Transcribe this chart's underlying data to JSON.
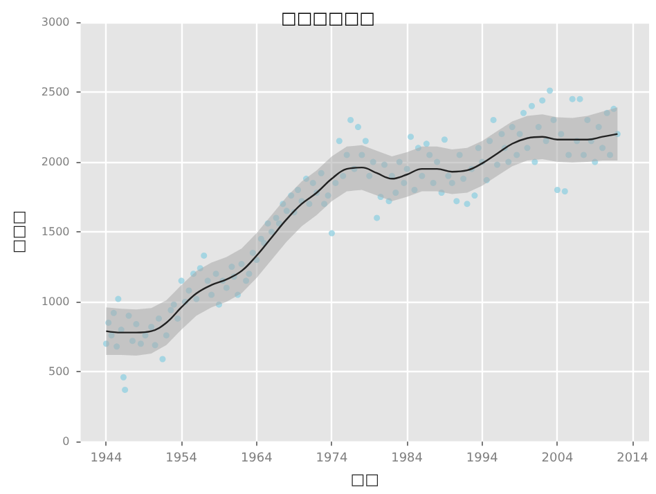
{
  "chart_data": {
    "type": "scatter",
    "title": "□□□□□□",
    "xlabel": "□□",
    "ylabel": "□□□",
    "xlim": [
      1940.6,
      2016.2
    ],
    "xticks": [
      1944,
      1954,
      1964,
      1974,
      1984,
      1994,
      2004,
      2014
    ],
    "ylim": [
      0,
      3000
    ],
    "yticks": [
      0,
      500,
      1000,
      1500,
      2000,
      2500,
      3000
    ],
    "grid": true,
    "marker": "circle",
    "series": [
      {
        "color": "#8fcfe0",
        "x": [
          1944,
          1944.3,
          1944.7,
          1945,
          1945.4,
          1945.6,
          1946,
          1946.3,
          1946.5,
          1947,
          1947.5,
          1948,
          1948.6,
          1949.2,
          1950,
          1950.5,
          1951,
          1951.5,
          1952,
          1952.6,
          1953,
          1953.5,
          1954,
          1954.5,
          1955,
          1955.6,
          1956,
          1956.5,
          1957,
          1957.5,
          1958,
          1958.6,
          1959,
          1959.5,
          1960,
          1960.7,
          1961,
          1961.5,
          1962,
          1962.6,
          1963,
          1963.5,
          1964,
          1964.6,
          1965,
          1965.5,
          1966,
          1966.6,
          1967,
          1967.5,
          1968,
          1968.6,
          1969,
          1969.5,
          1970,
          1970.6,
          1971,
          1971.5,
          1972,
          1972.6,
          1973,
          1973.5,
          1974,
          1974.5,
          1975,
          1975.5,
          1976,
          1976.5,
          1977,
          1977.5,
          1978,
          1978.5,
          1979,
          1979.5,
          1980,
          1980.5,
          1981,
          1981.6,
          1982,
          1982.5,
          1983,
          1983.6,
          1984,
          1984.5,
          1985,
          1985.5,
          1986,
          1986.6,
          1987,
          1987.5,
          1988,
          1988.6,
          1989,
          1989.5,
          1990,
          1990.6,
          1991,
          1991.5,
          1992,
          1992.6,
          1993,
          1993.5,
          1994,
          1994.6,
          1995,
          1995.5,
          1996,
          1996.6,
          1997,
          1997.5,
          1998,
          1998.6,
          1999,
          1999.5,
          2000,
          2000.6,
          2001,
          2001.5,
          2002,
          2002.5,
          2003,
          2003.5,
          2004,
          2004.5,
          2005,
          2005.5,
          2006,
          2006.6,
          2007,
          2007.5,
          2008,
          2008.5,
          2009,
          2009.5,
          2010,
          2010.6,
          2011,
          2011.5,
          2012
        ],
        "values": [
          700,
          850,
          760,
          920,
          680,
          1020,
          800,
          460,
          370,
          900,
          720,
          840,
          700,
          760,
          820,
          690,
          880,
          590,
          760,
          940,
          980,
          880,
          1150,
          1000,
          1080,
          1200,
          1020,
          1240,
          1330,
          1150,
          1050,
          1200,
          980,
          1150,
          1100,
          1250,
          1180,
          1050,
          1270,
          1150,
          1200,
          1350,
          1300,
          1450,
          1420,
          1560,
          1500,
          1600,
          1560,
          1700,
          1650,
          1760,
          1640,
          1800,
          1720,
          1880,
          1700,
          1850,
          1780,
          1920,
          1700,
          1760,
          1490,
          1850,
          2150,
          1900,
          2050,
          2300,
          1950,
          2250,
          2050,
          2150,
          1900,
          2000,
          1600,
          1750,
          1980,
          1720,
          1900,
          1780,
          2000,
          1850,
          1950,
          2180,
          1800,
          2100,
          1900,
          2130,
          2050,
          1850,
          2000,
          1780,
          2160,
          1900,
          1850,
          1720,
          2050,
          1880,
          1700,
          1950,
          1760,
          2100,
          2000,
          1870,
          2150,
          2300,
          1980,
          2200,
          2100,
          2000,
          2250,
          2050,
          2200,
          2350,
          2100,
          2400,
          2000,
          2250,
          2440,
          2150,
          2510,
          2300,
          1800,
          2200,
          1790,
          2050,
          2450,
          2150,
          2450,
          2050,
          2300,
          2150,
          2000,
          2250,
          2100,
          2350,
          2050,
          2380,
          2200
        ]
      },
      {
        "type": "line",
        "color": "#222222",
        "marker": "none",
        "x": [
          1944,
          1946,
          1948,
          1950,
          1952,
          1954,
          1956,
          1958,
          1960,
          1962,
          1964,
          1966,
          1968,
          1970,
          1972,
          1974,
          1976,
          1978,
          1980,
          1982,
          1984,
          1986,
          1988,
          1990,
          1992,
          1994,
          1996,
          1998,
          2000,
          2002,
          2004,
          2006,
          2008,
          2010,
          2012
        ],
        "values": [
          790,
          780,
          780,
          790,
          850,
          960,
          1060,
          1120,
          1160,
          1220,
          1330,
          1460,
          1590,
          1700,
          1780,
          1880,
          1950,
          1960,
          1920,
          1880,
          1910,
          1950,
          1950,
          1930,
          1940,
          1990,
          2060,
          2130,
          2170,
          2180,
          2160,
          2160,
          2160,
          2180,
          2200
        ],
        "lower": [
          620,
          620,
          615,
          630,
          690,
          800,
          900,
          960,
          1000,
          1060,
          1170,
          1300,
          1430,
          1540,
          1620,
          1720,
          1790,
          1800,
          1760,
          1720,
          1750,
          1790,
          1790,
          1770,
          1780,
          1830,
          1900,
          1970,
          2010,
          2020,
          2000,
          1995,
          2000,
          2010,
          2010
        ],
        "upper": [
          960,
          950,
          945,
          955,
          1010,
          1120,
          1220,
          1280,
          1320,
          1380,
          1490,
          1620,
          1750,
          1860,
          1940,
          2040,
          2110,
          2120,
          2080,
          2040,
          2070,
          2110,
          2110,
          2090,
          2100,
          2150,
          2220,
          2290,
          2330,
          2340,
          2320,
          2315,
          2330,
          2360,
          2390
        ]
      }
    ]
  }
}
